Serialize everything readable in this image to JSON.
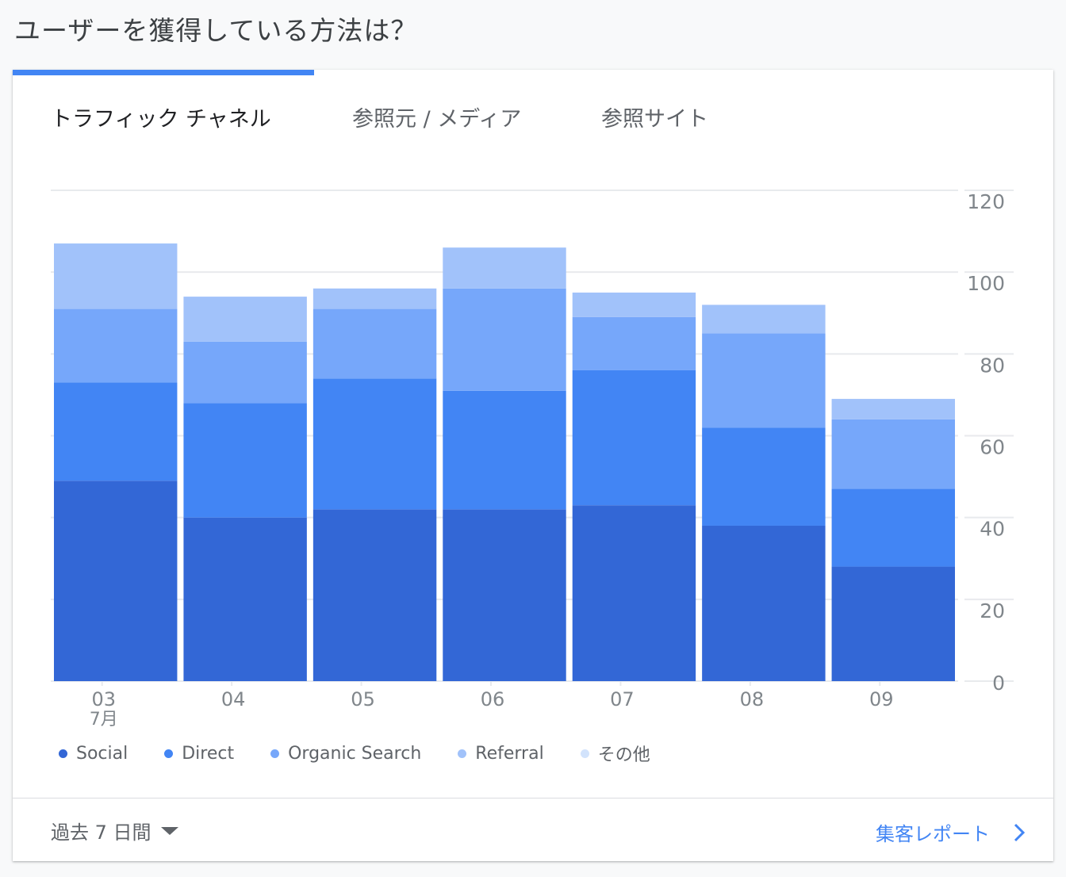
{
  "page": {
    "title": "ユーザーを獲得している方法は？"
  },
  "tabs": [
    {
      "label": "トラフィック チャネル",
      "active": true
    },
    {
      "label": "参照元 / メディア",
      "active": false
    },
    {
      "label": "参照サイト",
      "active": false
    }
  ],
  "colors": {
    "accent": "#4285f4",
    "grid": "#e8eaed",
    "axis_text": "#80868b"
  },
  "chart_data": {
    "type": "bar",
    "stacked": true,
    "categories": [
      "03",
      "04",
      "05",
      "06",
      "07",
      "08",
      "09"
    ],
    "category_sublabels": [
      "7月",
      "",
      "",
      "",
      "",
      "",
      ""
    ],
    "series": [
      {
        "name": "Social",
        "color": "#3367d6",
        "values": [
          49,
          40,
          42,
          42,
          43,
          38,
          28
        ]
      },
      {
        "name": "Direct",
        "color": "#4285f4",
        "values": [
          24,
          28,
          32,
          29,
          33,
          24,
          19
        ]
      },
      {
        "name": "Organic Search",
        "color": "#76a7fa",
        "values": [
          18,
          15,
          17,
          25,
          13,
          23,
          17
        ]
      },
      {
        "name": "Referral",
        "color": "#a1c2fa",
        "values": [
          16,
          11,
          5,
          10,
          6,
          7,
          5
        ]
      },
      {
        "name": "その他",
        "color": "#d2e3fc",
        "values": [
          0,
          0,
          0,
          0,
          0,
          0,
          0
        ]
      }
    ],
    "yticks": [
      0,
      20,
      40,
      60,
      80,
      100,
      120
    ],
    "ylim": [
      0,
      120
    ],
    "y_axis_side": "right",
    "grid": true,
    "legend_position": "bottom"
  },
  "footer": {
    "range_label": "過去 7 日間",
    "report_link": "集客レポート"
  },
  "icons": {
    "range_caret": "caret-down-icon",
    "report_chevron": "chevron-right-icon"
  }
}
